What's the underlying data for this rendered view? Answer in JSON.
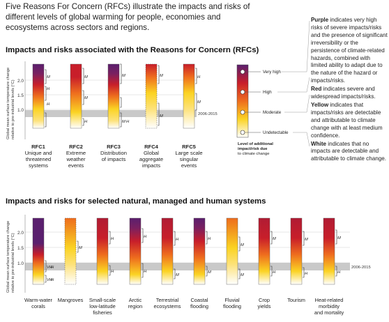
{
  "intro_text": "Five Reasons For Concern (RFCs) illustrate the impacts and risks of different levels of global warming for people, economies and ecosystems across sectors and regions.",
  "top_section": {
    "title": "Impacts and risks associated with the Reasons for Concern (RFCs)",
    "y_axis_label_line1": "Global mean surface temperature change",
    "y_axis_label_line2": "relative to pre-industrial levels (°C)",
    "period_label": "2006-2015",
    "y_ticks": [
      "1.0",
      "1.5",
      "2.0"
    ],
    "columns": [
      {
        "label_lines": [
          "RFC1",
          "Unique and",
          "threatened",
          "systems"
        ],
        "confidence": [
          "H",
          "H",
          "M"
        ]
      },
      {
        "label_lines": [
          "RFC2",
          "Extreme",
          "weather",
          "events"
        ],
        "confidence": [
          "H",
          "M",
          "M"
        ]
      },
      {
        "label_lines": [
          "RFC3",
          "Distribution",
          "of impacts"
        ],
        "confidence": [
          "M",
          "H",
          "M"
        ]
      },
      {
        "label_lines": [
          "RFC4",
          "Global",
          "aggregate",
          "impacts"
        ],
        "confidence": [
          "M",
          "M"
        ]
      },
      {
        "label_lines": [
          "RFC5",
          "Large scale",
          "singular",
          "events"
        ],
        "confidence": [
          "M",
          "H"
        ]
      }
    ]
  },
  "legend_scale": {
    "levels": [
      "Very high",
      "High",
      "Moderate",
      "Undetectable"
    ],
    "caption_lines": [
      "Level of additional",
      "impact/risk due",
      "to climate change"
    ]
  },
  "legend_descriptions": [
    {
      "color_word": "Purple",
      "text": " indicates very high risks of severe impacts/risks and the presence of significant irreversibility or the persistence of climate-related hazards, combined with limited ability to adapt due to the nature of the hazard or impacts/risks."
    },
    {
      "color_word": "Red",
      "text": " indicates severe and widespread impacts/risks."
    },
    {
      "color_word": "Yellow",
      "text": " indicates that impacts/risks are detectable and attributable to climate change with at least medium confidence."
    },
    {
      "color_word": "White",
      "text": " indicates that no impacts are detectable and attributable to climate change."
    }
  ],
  "bottom_section": {
    "title": "Impacts and risks for selected natural, managed and human systems",
    "y_axis_label_line1": "Global mean surface temperature change",
    "y_axis_label_line2": "relative to pre-industrial levels (°C)",
    "period_label": "2006-2015",
    "y_ticks": [
      "1.0",
      "1.5",
      "2.0"
    ],
    "columns": [
      {
        "label_lines": [
          "Warm-water",
          "corals"
        ],
        "confidence": [
          "VH",
          "H",
          "VH",
          "H"
        ]
      },
      {
        "label_lines": [
          "Mangroves"
        ],
        "confidence": [
          "M"
        ]
      },
      {
        "label_lines": [
          "Small-scale",
          "low-latitude",
          "fisheries"
        ],
        "confidence": [
          "H",
          "H"
        ]
      },
      {
        "label_lines": [
          "Arctic",
          "region"
        ],
        "confidence": [
          "H",
          "H"
        ]
      },
      {
        "label_lines": [
          "Terrestrial",
          "ecosystems"
        ],
        "confidence": [
          "H",
          "M"
        ]
      },
      {
        "label_lines": [
          "Coastal",
          "flooding"
        ],
        "confidence": [
          "H",
          "M"
        ]
      },
      {
        "label_lines": [
          "Fluvial",
          "flooding"
        ],
        "confidence": [
          "M",
          "M"
        ]
      },
      {
        "label_lines": [
          "Crop",
          "yields"
        ],
        "confidence": [
          "M",
          "H"
        ]
      },
      {
        "label_lines": [
          "Tourism"
        ],
        "confidence": [
          "M",
          "H"
        ]
      },
      {
        "label_lines": [
          "Heat-related",
          "morbidity",
          "and mortality"
        ],
        "confidence": [
          "M",
          "H"
        ]
      }
    ]
  },
  "colors": {
    "purple": "#5a1f6e",
    "red": "#c81e2a",
    "orange": "#ee6d1e",
    "yellow": "#fbd323",
    "white": "#ffffff",
    "band": "#c9c9c9"
  }
}
